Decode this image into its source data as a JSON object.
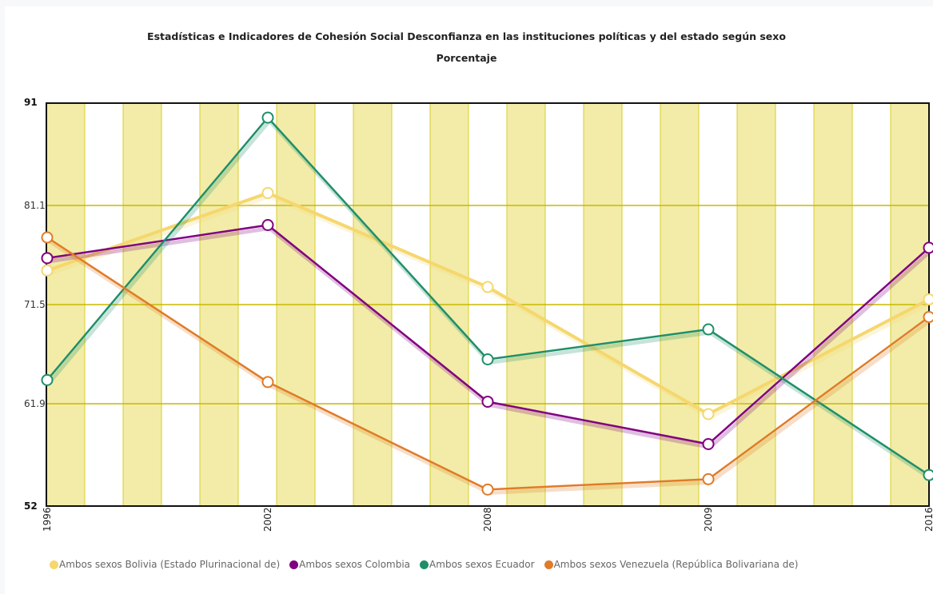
{
  "chart_data": {
    "type": "line",
    "title": "Estadísticas e Indicadores de Cohesión Social Desconfianza en las instituciones políticas y del estado según sexo",
    "subtitle": "Porcentaje",
    "xlabel": "",
    "ylabel": "",
    "x": [
      "1996",
      "2002",
      "2008",
      "2009",
      "2016"
    ],
    "ylim": [
      52,
      91
    ],
    "yticks": [
      "52",
      "61.9",
      "71.5",
      "81.1",
      "91"
    ],
    "grid": true,
    "legend_position": "bottom",
    "series": [
      {
        "name": "Ambos sexos Bolivia (Estado Plurinacional de)",
        "color": "#f5d76e",
        "values": [
          74.8,
          82.3,
          73.2,
          60.9,
          72.0
        ]
      },
      {
        "name": "Ambos sexos Colombia",
        "color": "#800080",
        "values": [
          76.0,
          79.2,
          62.1,
          58.0,
          77.0
        ]
      },
      {
        "name": "Ambos sexos Ecuador",
        "color": "#1f8f6a",
        "values": [
          64.2,
          89.6,
          66.2,
          69.1,
          55.0
        ]
      },
      {
        "name": "Ambos sexos Venezuela (República Bolivariana de)",
        "color": "#e07b28",
        "values": [
          78.0,
          64.0,
          53.6,
          54.6,
          70.3
        ]
      }
    ]
  }
}
